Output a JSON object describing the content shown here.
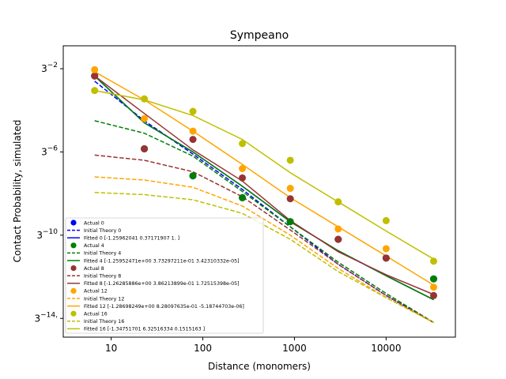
{
  "chart_data": {
    "type": "line",
    "title": "Sympeano",
    "xlabel": "Distance (monomers)",
    "ylabel": "Contact Probability, simulated",
    "x_scale": "log10",
    "y_scale": "log3",
    "xlim": [
      3,
      57000
    ],
    "ylim_log3": [
      -14.9,
      -0.9
    ],
    "x_ticks": [
      {
        "value": 10,
        "label": "10"
      },
      {
        "value": 100,
        "label": "100"
      },
      {
        "value": 1000,
        "label": "1000"
      },
      {
        "value": 10000,
        "label": "10000"
      }
    ],
    "y_ticks": [
      {
        "value": -2,
        "base": "3",
        "exp": "−2"
      },
      {
        "value": -6,
        "base": "3",
        "exp": "−6"
      },
      {
        "value": -10,
        "base": "3",
        "exp": "−10"
      },
      {
        "value": -14,
        "base": "3",
        "exp": "−14"
      }
    ],
    "y_tick_suffix": ",",
    "legend_position": "lower-left",
    "x": [
      6.6,
      23,
      78,
      270,
      900,
      3000,
      10000,
      33000
    ],
    "series": [
      {
        "color": "#0000ff",
        "actual_label": "Actual 0",
        "theory_label": "Initial Theory 0",
        "fitted_label": "Fitted 0 [-1.25962041  0.37171907  1.        ]",
        "actual_log3": [
          -2.35,
          -5.85,
          -7.15,
          -8.2,
          -9.35,
          -10.2,
          -11.1,
          -12.1
        ],
        "theory_log3": [
          -2.6,
          -4.5,
          -6.1,
          -7.8,
          -9.6,
          -11.4,
          -12.9,
          -14.2
        ],
        "fitted_log3": [
          -2.35,
          -4.6,
          -6.0,
          -7.65,
          -9.35,
          -10.75,
          -11.95,
          -13.1
        ]
      },
      {
        "color": "#008000",
        "actual_label": "Actual 4",
        "theory_label": "Initial Theory 4",
        "fitted_label": "Fitted 4 [-1.25952471e+00  3.73297211e-01  3.42310332e-05]",
        "actual_log3": [
          -2.35,
          -5.85,
          -7.15,
          -8.2,
          -9.35,
          -10.2,
          -11.1,
          -12.1
        ],
        "theory_log3": [
          -4.5,
          -5.1,
          -6.2,
          -7.9,
          -9.6,
          -11.3,
          -12.8,
          -14.2
        ],
        "fitted_log3": [
          -2.35,
          -4.6,
          -6.0,
          -7.65,
          -9.35,
          -10.75,
          -11.95,
          -13.1
        ]
      },
      {
        "color": "#993333",
        "actual_label": "Actual 8",
        "theory_label": "Initial Theory 8",
        "fitted_label": "Fitted 8 [-1.26285886e+00  3.86213899e-01  1.72515398e-05]",
        "actual_log3": [
          -2.35,
          -5.85,
          -5.4,
          -7.25,
          -8.25,
          -10.2,
          -11.1,
          -12.9
        ],
        "theory_log3": [
          -6.15,
          -6.4,
          -6.95,
          -8.15,
          -9.75,
          -11.4,
          -12.9,
          -14.2
        ],
        "fitted_log3": [
          -2.35,
          -4.15,
          -5.9,
          -7.4,
          -9.3,
          -10.8,
          -11.9,
          -12.85
        ]
      },
      {
        "color": "#ffa500",
        "actual_label": "Actual 12",
        "theory_label": "Initial Theory 12",
        "fitted_label": "Fitted 12 [-1.28698249e+00  8.28097635e-01 -5.18744703e-06]",
        "actual_log3": [
          -2.05,
          -4.4,
          -5.0,
          -6.8,
          -7.75,
          -9.7,
          -10.65,
          -12.5
        ],
        "theory_log3": [
          -7.2,
          -7.35,
          -7.7,
          -8.6,
          -10.0,
          -11.6,
          -13.0,
          -14.2
        ],
        "fitted_log3": [
          -2.15,
          -3.5,
          -5.0,
          -6.6,
          -8.2,
          -9.6,
          -11.0,
          -12.4
        ]
      },
      {
        "color": "#bfbf00",
        "actual_label": "Actual 16",
        "theory_label": "Initial Theory 16",
        "fitted_label": "Fitted 16 [-1.34751701  6.32516334  0.1515163 ]",
        "actual_log3": [
          -3.05,
          -3.45,
          -4.05,
          -5.6,
          -6.4,
          -8.4,
          -9.3,
          -11.25
        ],
        "theory_log3": [
          -7.95,
          -8.05,
          -8.3,
          -8.95,
          -10.2,
          -11.75,
          -13.0,
          -14.2
        ],
        "fitted_log3": [
          -3.05,
          -3.5,
          -4.25,
          -5.4,
          -7.0,
          -8.4,
          -9.8,
          -11.15
        ]
      }
    ]
  }
}
